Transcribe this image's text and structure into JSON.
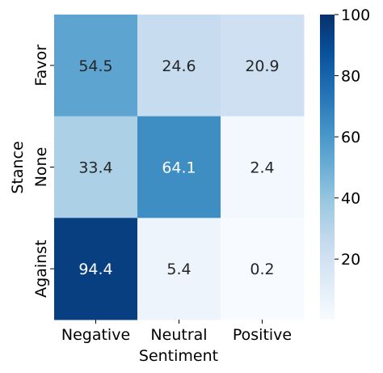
{
  "chart_data": {
    "type": "heatmap",
    "title": "",
    "xlabel": "Sentiment",
    "ylabel": "Stance",
    "x_categories": [
      "Negative",
      "Neutral",
      "Positive"
    ],
    "y_categories": [
      "Favor",
      "None",
      "Against"
    ],
    "values": [
      [
        54.5,
        24.6,
        20.9
      ],
      [
        33.4,
        64.1,
        2.4
      ],
      [
        94.4,
        5.4,
        0.2
      ]
    ],
    "value_labels": [
      [
        "54.5",
        "24.6",
        "20.9"
      ],
      [
        "33.4",
        "64.1",
        "2.4"
      ],
      [
        "94.4",
        "5.4",
        "0.2"
      ]
    ],
    "colormap": "Blues",
    "vmin": 0.2,
    "vmax": 100,
    "colorbar": {
      "ticks": [
        20,
        40,
        60,
        80,
        100
      ],
      "tick_labels": [
        "20",
        "40",
        "60",
        "80",
        "100"
      ]
    },
    "grid": false
  }
}
